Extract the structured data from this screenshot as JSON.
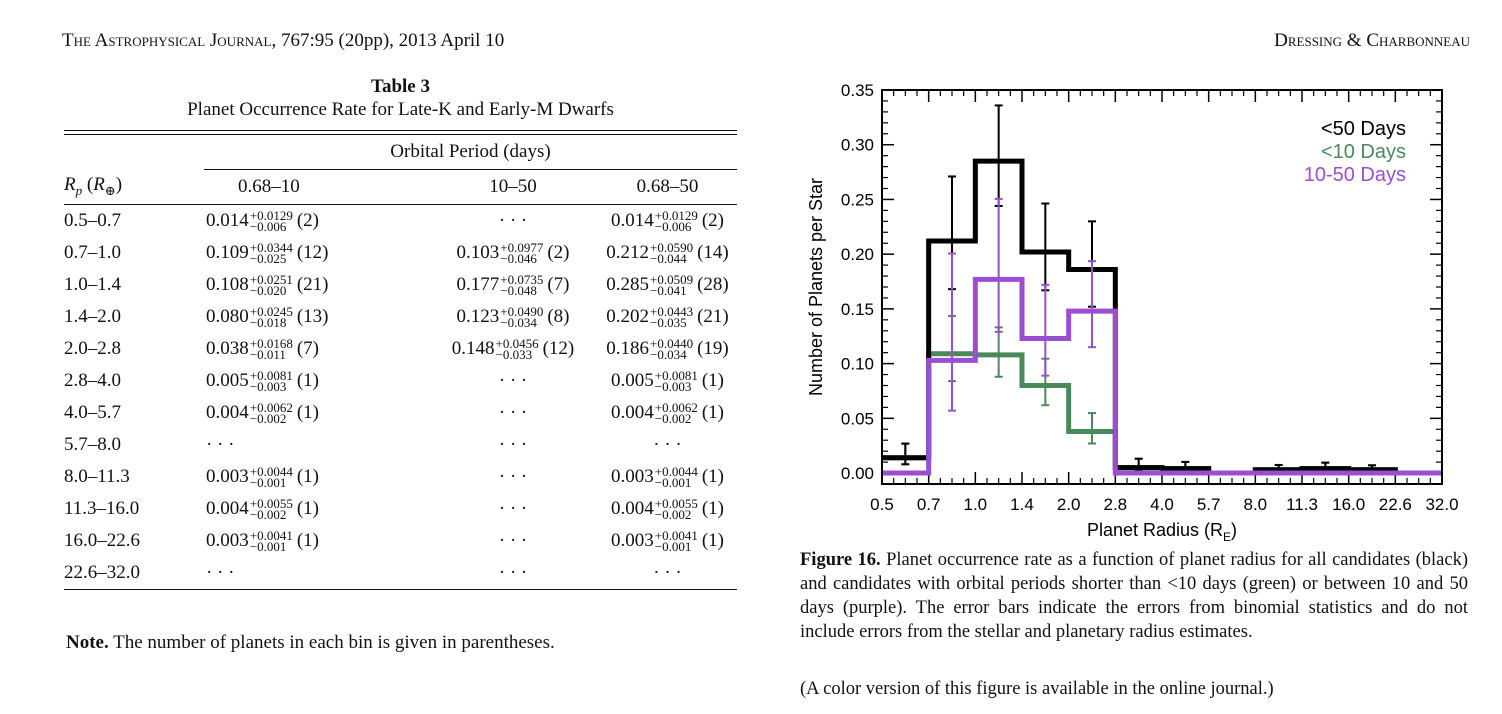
{
  "running_head": {
    "journal": "The Astrophysical Journal",
    "citation": ", 767:95 (20pp), 2013 April 10",
    "authors": "Dressing & Charbonneau"
  },
  "table": {
    "title": "Table 3",
    "caption": "Planet Occurrence Rate for Late-K and Early-M Dwarfs",
    "spanner": "Orbital Period (days)",
    "row_header": "Rp (R⊕)",
    "columns": [
      "0.68–10",
      "10–50",
      "0.68–50"
    ],
    "empty": "· · ·",
    "rows": [
      {
        "radius": "0.5–0.7",
        "cells": [
          {
            "v": "0.014",
            "up": "+0.0129",
            "lo": "−0.006",
            "n": "(2)"
          },
          null,
          {
            "v": "0.014",
            "up": "+0.0129",
            "lo": "−0.006",
            "n": "(2)"
          }
        ]
      },
      {
        "radius": "0.7–1.0",
        "cells": [
          {
            "v": "0.109",
            "up": "+0.0344",
            "lo": "−0.025",
            "n": "(12)"
          },
          {
            "v": "0.103",
            "up": "+0.0977",
            "lo": "−0.046",
            "n": "(2)"
          },
          {
            "v": "0.212",
            "up": "+0.0590",
            "lo": "−0.044",
            "n": "(14)"
          }
        ]
      },
      {
        "radius": "1.0–1.4",
        "cells": [
          {
            "v": "0.108",
            "up": "+0.0251",
            "lo": "−0.020",
            "n": "(21)"
          },
          {
            "v": "0.177",
            "up": "+0.0735",
            "lo": "−0.048",
            "n": "(7)"
          },
          {
            "v": "0.285",
            "up": "+0.0509",
            "lo": "−0.041",
            "n": "(28)"
          }
        ]
      },
      {
        "radius": "1.4–2.0",
        "cells": [
          {
            "v": "0.080",
            "up": "+0.0245",
            "lo": "−0.018",
            "n": "(13)"
          },
          {
            "v": "0.123",
            "up": "+0.0490",
            "lo": "−0.034",
            "n": "(8)"
          },
          {
            "v": "0.202",
            "up": "+0.0443",
            "lo": "−0.035",
            "n": "(21)"
          }
        ]
      },
      {
        "radius": "2.0–2.8",
        "cells": [
          {
            "v": "0.038",
            "up": "+0.0168",
            "lo": "−0.011",
            "n": "(7)"
          },
          {
            "v": "0.148",
            "up": "+0.0456",
            "lo": "−0.033",
            "n": "(12)"
          },
          {
            "v": "0.186",
            "up": "+0.0440",
            "lo": "−0.034",
            "n": "(19)"
          }
        ]
      },
      {
        "radius": "2.8–4.0",
        "cells": [
          {
            "v": "0.005",
            "up": "+0.0081",
            "lo": "−0.003",
            "n": "(1)"
          },
          null,
          {
            "v": "0.005",
            "up": "+0.0081",
            "lo": "−0.003",
            "n": "(1)"
          }
        ]
      },
      {
        "radius": "4.0–5.7",
        "cells": [
          {
            "v": "0.004",
            "up": "+0.0062",
            "lo": "−0.002",
            "n": "(1)"
          },
          null,
          {
            "v": "0.004",
            "up": "+0.0062",
            "lo": "−0.002",
            "n": "(1)"
          }
        ]
      },
      {
        "radius": "5.7–8.0",
        "cells": [
          null,
          null,
          null
        ]
      },
      {
        "radius": "8.0–11.3",
        "cells": [
          {
            "v": "0.003",
            "up": "+0.0044",
            "lo": "−0.001",
            "n": "(1)"
          },
          null,
          {
            "v": "0.003",
            "up": "+0.0044",
            "lo": "−0.001",
            "n": "(1)"
          }
        ]
      },
      {
        "radius": "11.3–16.0",
        "cells": [
          {
            "v": "0.004",
            "up": "+0.0055",
            "lo": "−0.002",
            "n": "(1)"
          },
          null,
          {
            "v": "0.004",
            "up": "+0.0055",
            "lo": "−0.002",
            "n": "(1)"
          }
        ]
      },
      {
        "radius": "16.0–22.6",
        "cells": [
          {
            "v": "0.003",
            "up": "+0.0041",
            "lo": "−0.001",
            "n": "(1)"
          },
          null,
          {
            "v": "0.003",
            "up": "+0.0041",
            "lo": "−0.001",
            "n": "(1)"
          }
        ]
      },
      {
        "radius": "22.6–32.0",
        "cells": [
          null,
          null,
          null
        ]
      }
    ],
    "note_label": "Note.",
    "note_text": " The number of planets in each bin is given in parentheses."
  },
  "figure": {
    "label": "Figure 16.",
    "caption": " Planet occurrence rate as a function of planet radius for all candidates (black) and candidates with orbital periods shorter than <10 days (green) or between 10 and 50 days (purple). The error bars indicate the errors from binomial statistics and do not include errors from the stellar and planetary radius estimates.",
    "color_note": "(A color version of this figure is available in the online journal.)"
  },
  "chart_data": {
    "type": "step-histogram",
    "xlabel": "Planet Radius (R",
    "xlabel_sub": "E",
    "xlabel_close": ")",
    "ylabel": "Number of Planets per Star",
    "bin_edges": [
      0.5,
      0.7,
      1.0,
      1.4,
      2.0,
      2.8,
      4.0,
      5.7,
      8.0,
      11.3,
      16.0,
      22.6,
      32.0
    ],
    "x_tick_labels": [
      "0.5",
      "0.7",
      "1.0",
      "1.4",
      "2.0",
      "2.8",
      "4.0",
      "5.7",
      "8.0",
      "11.3",
      "16.0",
      "22.6",
      "32.0"
    ],
    "ylim": [
      -0.01,
      0.35
    ],
    "y_ticks": [
      0.0,
      0.05,
      0.1,
      0.15,
      0.2,
      0.25,
      0.3,
      0.35
    ],
    "y_tick_labels": [
      "0.00",
      "0.05",
      "0.10",
      "0.15",
      "0.20",
      "0.25",
      "0.30",
      "0.35"
    ],
    "legend_position": "top-right",
    "series": [
      {
        "name": "<50 Days",
        "color": "#000000",
        "values": [
          0.014,
          0.212,
          0.285,
          0.202,
          0.186,
          0.005,
          0.004,
          0.0,
          0.003,
          0.004,
          0.003,
          0.0
        ],
        "err_up": [
          0.0129,
          0.059,
          0.0509,
          0.0443,
          0.044,
          0.0081,
          0.0062,
          0,
          0.0044,
          0.0055,
          0.0041,
          0
        ],
        "err_lo": [
          0.006,
          0.044,
          0.041,
          0.035,
          0.034,
          0.003,
          0.002,
          0,
          0.001,
          0.002,
          0.001,
          0
        ]
      },
      {
        "name": "<10 Days",
        "color": "#4a8a5a",
        "values": [
          0.014,
          0.109,
          0.108,
          0.08,
          0.038,
          0.005,
          0.004,
          0.0,
          0.003,
          0.004,
          0.003,
          0.0
        ],
        "err_up": [
          0.0129,
          0.0344,
          0.0251,
          0.0245,
          0.0168,
          0.0081,
          0.0062,
          0,
          0.0044,
          0.0055,
          0.0041,
          0
        ],
        "err_lo": [
          0.006,
          0.025,
          0.02,
          0.018,
          0.011,
          0.003,
          0.002,
          0,
          0.001,
          0.002,
          0.001,
          0
        ]
      },
      {
        "name": "10-50 Days",
        "color": "#9a4fd0",
        "values": [
          0.0,
          0.103,
          0.177,
          0.123,
          0.148,
          0.0,
          0.0,
          0.0,
          0.0,
          0.0,
          0.0,
          0.0
        ],
        "err_up": [
          0,
          0.0977,
          0.0735,
          0.049,
          0.0456,
          0,
          0,
          0,
          0,
          0,
          0,
          0
        ],
        "err_lo": [
          0,
          0.046,
          0.048,
          0.034,
          0.033,
          0,
          0,
          0,
          0,
          0,
          0,
          0
        ]
      }
    ]
  }
}
